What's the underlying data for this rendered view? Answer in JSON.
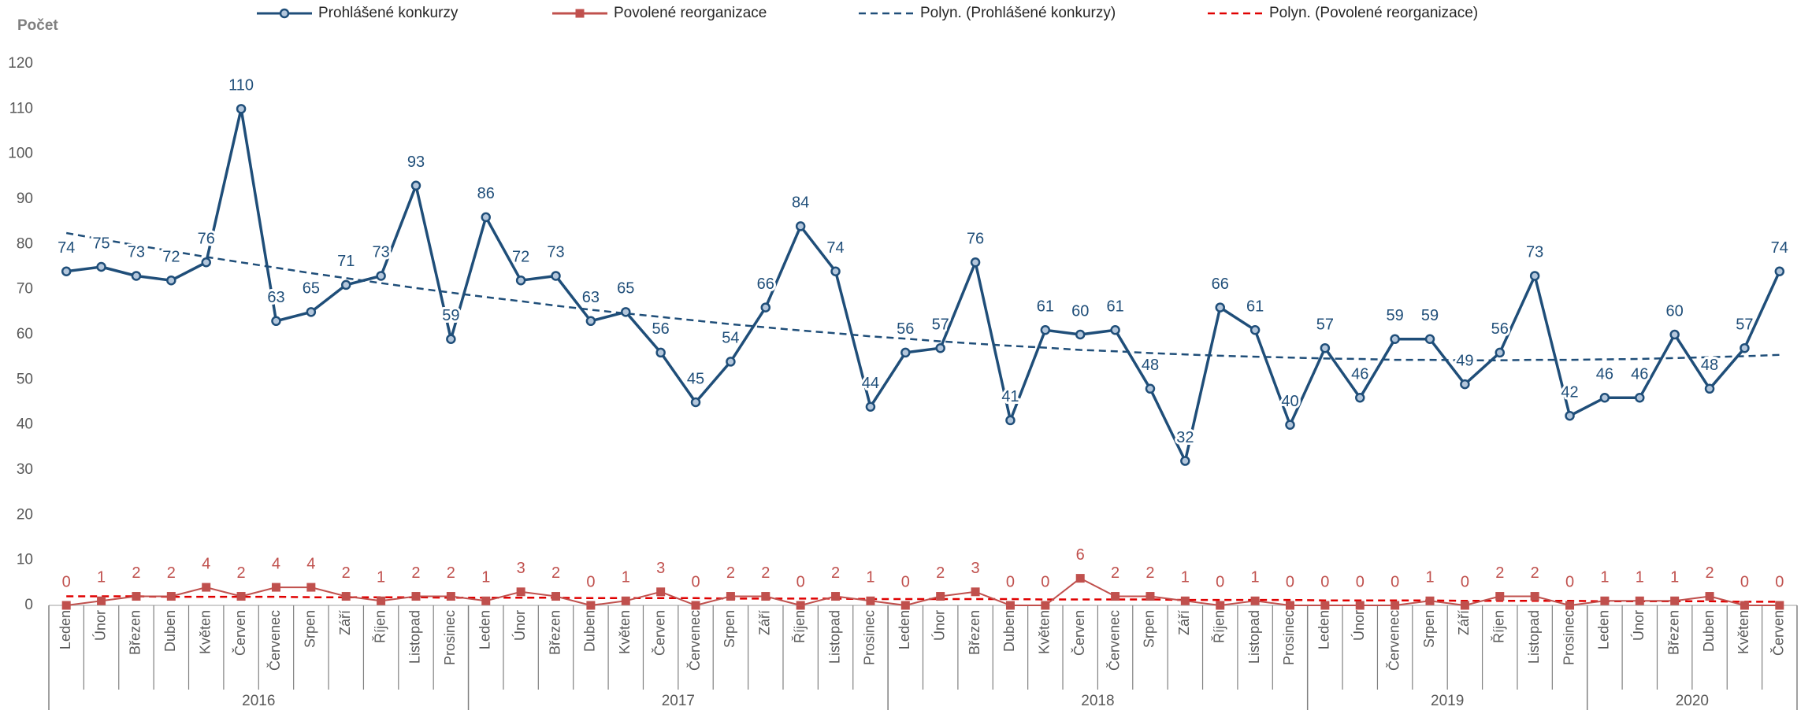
{
  "chart_data": {
    "type": "line",
    "y_axis_title": "Počet",
    "category_groups": [
      {
        "label": "2016",
        "categories": [
          "Leden",
          "Únor",
          "Březen",
          "Duben",
          "Květen",
          "Červen",
          "Červenec",
          "Srpen",
          "Září",
          "Říjen",
          "Listopad",
          "Prosinec"
        ]
      },
      {
        "label": "2017",
        "categories": [
          "Leden",
          "Únor",
          "Březen",
          "Duben",
          "Květen",
          "Červen",
          "Červenec",
          "Srpen",
          "Září",
          "Říjen",
          "Listopad",
          "Prosinec"
        ]
      },
      {
        "label": "2018",
        "categories": [
          "Leden",
          "Únor",
          "Březen",
          "Duben",
          "Květen",
          "Červen",
          "Červenec",
          "Srpen",
          "Září",
          "Říjen",
          "Listopad",
          "Prosinec"
        ]
      },
      {
        "label": "2019",
        "categories": [
          "Leden",
          "Únor",
          "Červenec",
          "Srpen",
          "Září",
          "Říjen",
          "Listopad",
          "Prosinec"
        ]
      },
      {
        "label": "2020",
        "categories": [
          "Leden",
          "Únor",
          "Březen",
          "Duben",
          "Květen",
          "Červen"
        ]
      }
    ],
    "series": [
      {
        "name": "Prohlášené konkurzy",
        "color": "#1f4e79",
        "marker": "circle",
        "line_style": "solid",
        "data_labels": true,
        "values": [
          74,
          75,
          73,
          72,
          76,
          110,
          63,
          65,
          71,
          73,
          93,
          59,
          86,
          72,
          73,
          63,
          65,
          56,
          45,
          54,
          66,
          84,
          74,
          44,
          56,
          57,
          76,
          41,
          61,
          60,
          61,
          48,
          32,
          66,
          61,
          40,
          57,
          46,
          59,
          59,
          49,
          56,
          73,
          42,
          46,
          46,
          60,
          48,
          57,
          74
        ]
      },
      {
        "name": "Povolené reorganizace",
        "color": "#c0504d",
        "marker": "square",
        "line_style": "solid",
        "data_labels": true,
        "values": [
          0,
          1,
          2,
          2,
          4,
          2,
          4,
          4,
          2,
          1,
          2,
          2,
          1,
          3,
          2,
          0,
          1,
          3,
          0,
          2,
          2,
          0,
          2,
          1,
          0,
          2,
          3,
          0,
          0,
          6,
          2,
          2,
          1,
          0,
          1,
          0,
          0,
          0,
          0,
          1,
          0,
          2,
          2,
          0,
          1,
          1,
          1,
          2,
          0,
          0
        ]
      },
      {
        "name": "Polyn. (Prohlášené konkurzy)",
        "color": "#1f4e79",
        "marker": "none",
        "line_style": "dashed",
        "data_labels": false,
        "values": [
          82.5,
          81.1,
          79.8,
          78.5,
          77.2,
          76.0,
          74.8,
          73.6,
          72.5,
          71.4,
          70.3,
          69.3,
          68.3,
          67.4,
          66.4,
          65.5,
          64.7,
          63.9,
          63.1,
          62.3,
          61.6,
          60.9,
          60.3,
          59.6,
          59.1,
          58.5,
          58.0,
          57.5,
          57.1,
          56.6,
          56.3,
          55.9,
          55.6,
          55.3,
          55.1,
          54.9,
          54.7,
          54.6,
          54.4,
          54.4,
          54.3,
          54.3,
          54.4,
          54.4,
          54.5,
          54.6,
          54.8,
          55.0,
          55.2,
          55.5
        ]
      },
      {
        "name": "Polyn. (Povolené reorganizace)",
        "color": "#e00000",
        "marker": "none",
        "line_style": "dashed",
        "data_labels": false,
        "values": [
          2.0,
          2.0,
          2.0,
          1.9,
          1.9,
          1.9,
          1.9,
          1.8,
          1.8,
          1.8,
          1.8,
          1.7,
          1.7,
          1.7,
          1.7,
          1.6,
          1.6,
          1.6,
          1.6,
          1.5,
          1.5,
          1.5,
          1.5,
          1.4,
          1.4,
          1.4,
          1.4,
          1.4,
          1.3,
          1.3,
          1.3,
          1.3,
          1.2,
          1.2,
          1.2,
          1.2,
          1.1,
          1.1,
          1.1,
          1.1,
          1.0,
          1.0,
          1.0,
          1.0,
          0.9,
          0.9,
          0.9,
          0.9,
          0.8,
          0.8
        ]
      }
    ],
    "ylim": [
      0,
      120
    ],
    "yticks": [
      0,
      10,
      20,
      30,
      40,
      50,
      60,
      70,
      80,
      90,
      100,
      110,
      120
    ],
    "grid": false,
    "legend": "top"
  }
}
